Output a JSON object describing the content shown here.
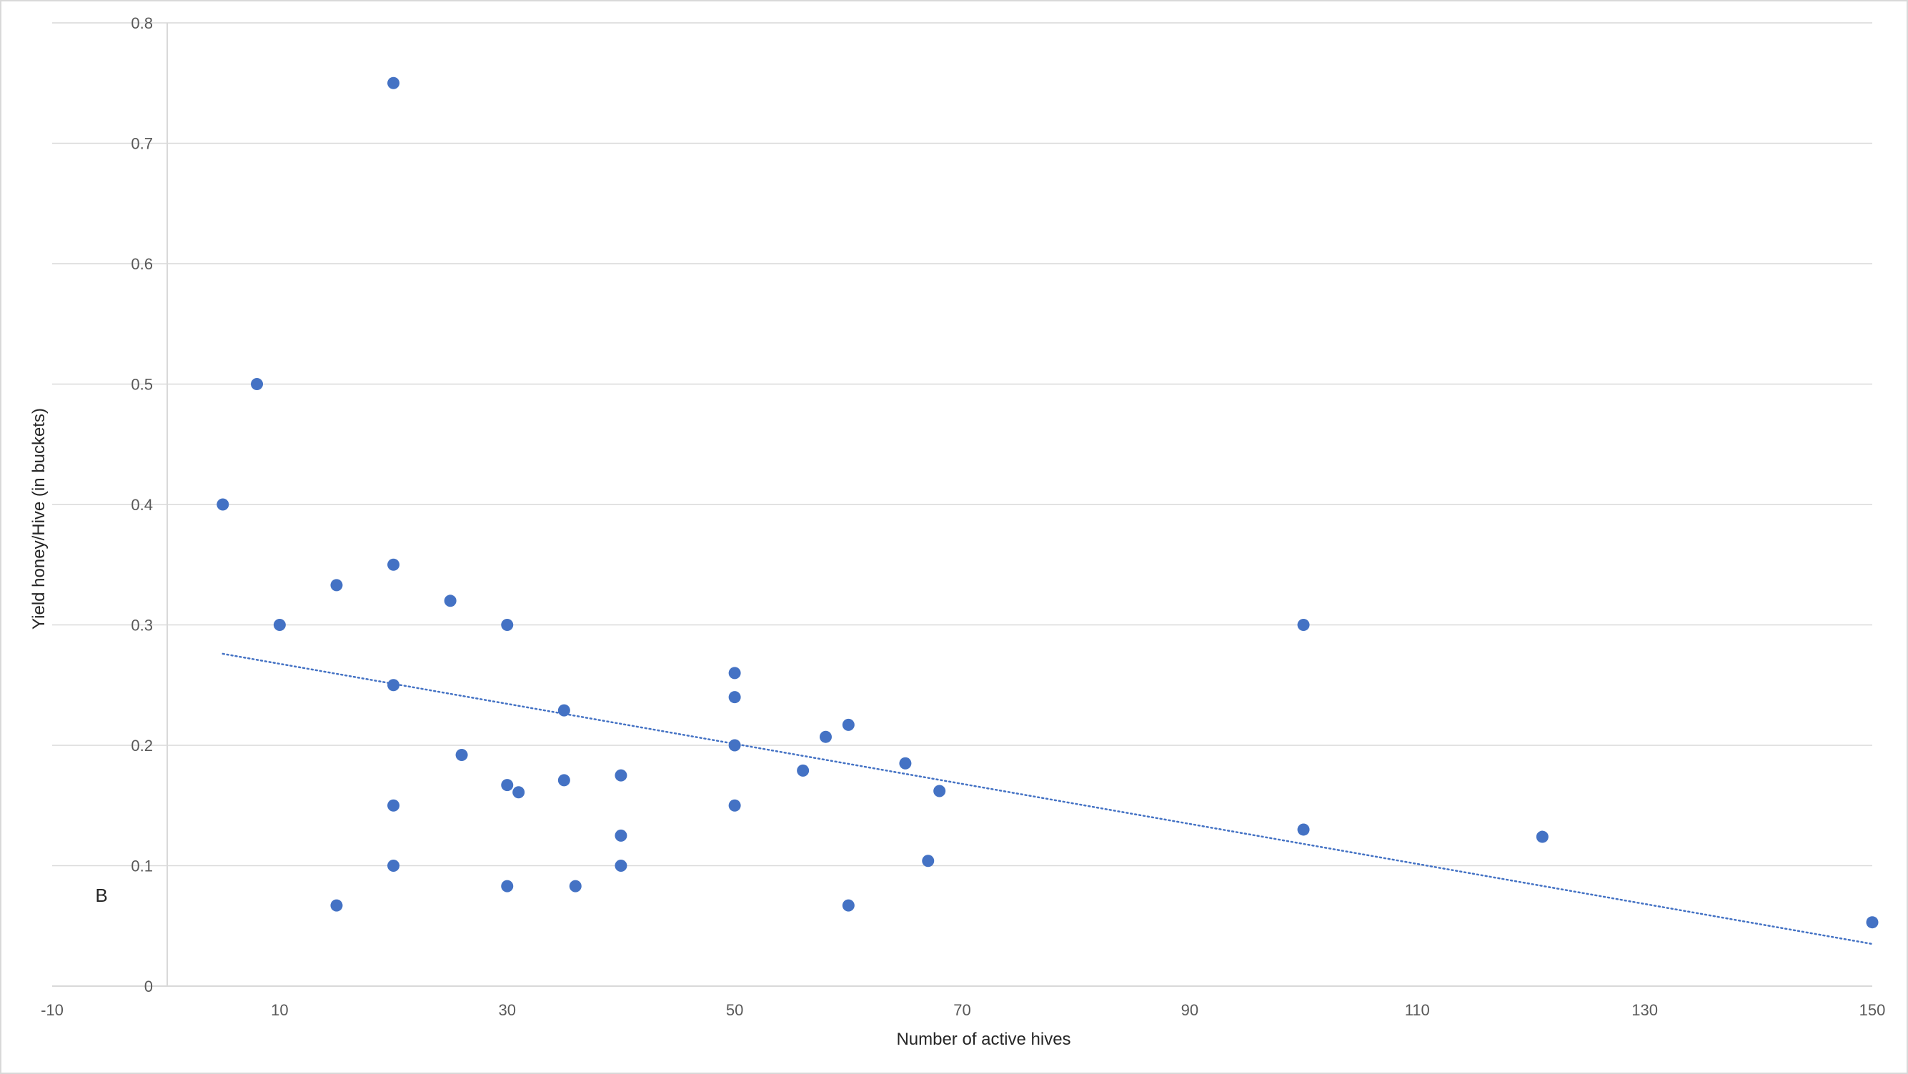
{
  "chart_data": {
    "type": "scatter",
    "title": "",
    "xlabel": "Number of active hives",
    "ylabel": "Yield honey/Hive (in buckets)",
    "xlim": [
      -10,
      150
    ],
    "ylim": [
      0,
      0.8
    ],
    "x_ticks": [
      -10,
      10,
      30,
      50,
      70,
      90,
      110,
      130,
      150
    ],
    "y_ticks": [
      0,
      0.1,
      0.2,
      0.3,
      0.4,
      0.5,
      0.6,
      0.7,
      0.8
    ],
    "x_tick_labels": [
      "-10",
      "10",
      "30",
      "50",
      "70",
      "90",
      "110",
      "130",
      "150"
    ],
    "y_tick_labels": [
      "0",
      "0.1",
      "0.2",
      "0.3",
      "0.4",
      "0.5",
      "0.6",
      "0.7",
      "0.8"
    ],
    "grid": {
      "horizontal": true,
      "vertical": false
    },
    "legend": "none",
    "annotation": "B",
    "marker_color": "#4472C4",
    "trendline_color": "#4472C4",
    "gridline_color": "#d9d9d9",
    "points": [
      {
        "x": 5,
        "y": 0.4
      },
      {
        "x": 8,
        "y": 0.5
      },
      {
        "x": 10,
        "y": 0.3
      },
      {
        "x": 15,
        "y": 0.333
      },
      {
        "x": 15,
        "y": 0.067
      },
      {
        "x": 20,
        "y": 0.75
      },
      {
        "x": 20,
        "y": 0.35
      },
      {
        "x": 20,
        "y": 0.25
      },
      {
        "x": 20,
        "y": 0.15
      },
      {
        "x": 20,
        "y": 0.1
      },
      {
        "x": 25,
        "y": 0.32
      },
      {
        "x": 26,
        "y": 0.192
      },
      {
        "x": 30,
        "y": 0.3
      },
      {
        "x": 30,
        "y": 0.167
      },
      {
        "x": 30,
        "y": 0.083
      },
      {
        "x": 31,
        "y": 0.161
      },
      {
        "x": 35,
        "y": 0.229
      },
      {
        "x": 35,
        "y": 0.171
      },
      {
        "x": 36,
        "y": 0.083
      },
      {
        "x": 40,
        "y": 0.175
      },
      {
        "x": 40,
        "y": 0.125
      },
      {
        "x": 40,
        "y": 0.1
      },
      {
        "x": 50,
        "y": 0.26
      },
      {
        "x": 50,
        "y": 0.24
      },
      {
        "x": 50,
        "y": 0.2
      },
      {
        "x": 50,
        "y": 0.15
      },
      {
        "x": 56,
        "y": 0.179
      },
      {
        "x": 58,
        "y": 0.207
      },
      {
        "x": 60,
        "y": 0.217
      },
      {
        "x": 60,
        "y": 0.067
      },
      {
        "x": 65,
        "y": 0.185
      },
      {
        "x": 67,
        "y": 0.104
      },
      {
        "x": 68,
        "y": 0.162
      },
      {
        "x": 100,
        "y": 0.3
      },
      {
        "x": 100,
        "y": 0.13
      },
      {
        "x": 121,
        "y": 0.124
      },
      {
        "x": 150,
        "y": 0.053
      }
    ],
    "trendline": {
      "type": "linear",
      "style": "dotted",
      "x_start": 5,
      "y_start": 0.276,
      "x_end": 150,
      "y_end": 0.035
    }
  }
}
